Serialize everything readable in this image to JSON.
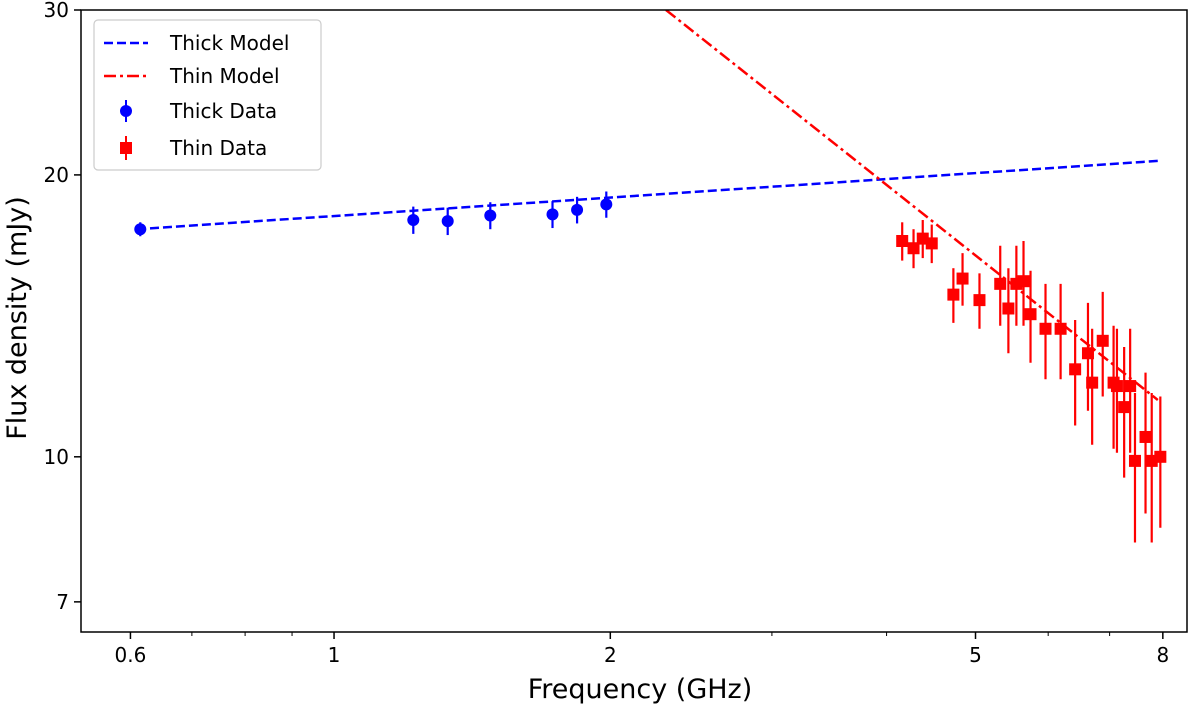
{
  "chart_data": {
    "type": "scatter",
    "title": "",
    "xlabel": "Frequency (GHz)",
    "ylabel": "Flux density (mJy)",
    "xscale": "log",
    "yscale": "log",
    "xlim": [
      0.53,
      8.5
    ],
    "ylim": [
      6.5,
      30
    ],
    "x_ticks": [
      0.6,
      1,
      2,
      5,
      8
    ],
    "x_tick_labels": [
      "0.6",
      "1",
      "2",
      "5",
      "8"
    ],
    "y_ticks": [
      7,
      10,
      20,
      30
    ],
    "y_tick_labels": [
      "7",
      "10",
      "20",
      "30"
    ],
    "legend_position": "upper-left",
    "series": [
      {
        "name": "Thick Model",
        "kind": "line",
        "style": "dashed",
        "color": "#0000ff",
        "x": [
          0.61,
          7.9
        ],
        "y": [
          17.5,
          20.7
        ]
      },
      {
        "name": "Thin Model",
        "kind": "line",
        "style": "dashdot",
        "color": "#ff0000",
        "x": [
          2.3,
          7.9
        ],
        "y": [
          30.0,
          11.5
        ]
      },
      {
        "name": "Thick Data",
        "kind": "errorbar",
        "marker": "circle",
        "color": "#0000ff",
        "x": [
          0.615,
          1.22,
          1.33,
          1.48,
          1.73,
          1.84,
          1.98
        ],
        "y": [
          17.5,
          17.9,
          17.85,
          18.1,
          18.15,
          18.35,
          18.6
        ],
        "yerr": [
          0.3,
          0.6,
          0.6,
          0.6,
          0.6,
          0.6,
          0.6
        ]
      },
      {
        "name": "Thin Data",
        "kind": "errorbar",
        "marker": "square",
        "color": "#ff0000",
        "x": [
          4.16,
          4.28,
          4.38,
          4.48,
          4.73,
          4.84,
          5.05,
          5.32,
          5.43,
          5.54,
          5.64,
          5.74,
          5.96,
          6.19,
          6.42,
          6.63,
          6.7,
          6.88,
          7.07,
          7.13,
          7.26,
          7.37,
          7.46,
          7.66,
          7.78,
          7.95
        ],
        "y": [
          17.0,
          16.7,
          17.1,
          16.9,
          14.9,
          15.5,
          14.7,
          15.3,
          14.4,
          15.3,
          15.4,
          14.2,
          13.7,
          13.7,
          12.4,
          12.9,
          12.0,
          13.3,
          12.0,
          11.9,
          11.3,
          11.9,
          9.9,
          10.5,
          9.9,
          10.0
        ],
        "yerr": [
          0.8,
          0.8,
          0.8,
          0.8,
          1.0,
          1.0,
          1.0,
          1.5,
          1.5,
          1.5,
          1.6,
          1.6,
          1.6,
          1.6,
          1.6,
          1.7,
          1.7,
          1.7,
          1.8,
          1.8,
          1.8,
          1.8,
          1.8,
          1.8,
          1.8,
          1.6
        ]
      }
    ]
  }
}
